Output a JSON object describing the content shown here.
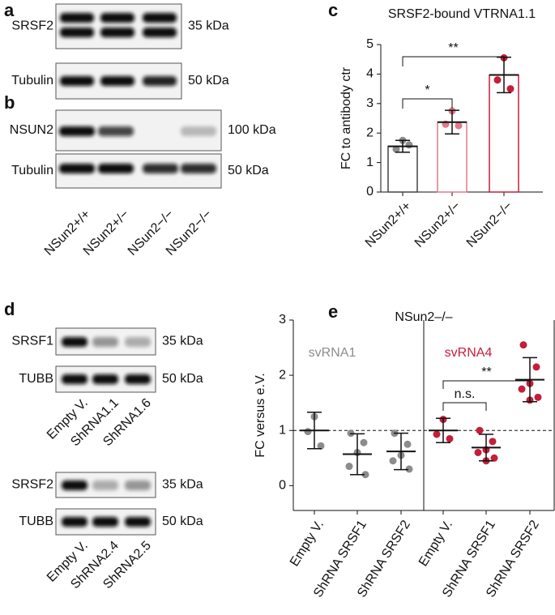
{
  "panel_labels": [
    "a",
    "b",
    "c",
    "d",
    "e"
  ],
  "blots": {
    "a": {
      "rows": [
        {
          "label": "SRSF2",
          "size": "35 kDa"
        },
        {
          "label": "Tubulin",
          "size": "50 kDa"
        }
      ]
    },
    "b": {
      "rows": [
        {
          "label": "NSUN2",
          "size": "100 kDa"
        },
        {
          "label": "Tubulin",
          "size": "50 kDa"
        }
      ],
      "lanes": [
        "NSun2+/+",
        "NSun2+/−",
        "NSun2−/−",
        "NSun2−/−"
      ]
    },
    "d1": {
      "rows": [
        {
          "label": "SRSF1",
          "size": "35 kDa"
        },
        {
          "label": "TUBB",
          "size": "50 kDa"
        }
      ],
      "lanes": [
        "Empty V.",
        "ShRNA1.1",
        "ShRNA1.6"
      ]
    },
    "d2": {
      "rows": [
        {
          "label": "SRSF2",
          "size": "35 kDa"
        },
        {
          "label": "TUBB",
          "size": "50 kDa"
        }
      ],
      "lanes": [
        "Empty V.",
        "ShRNA2.4",
        "ShRNA2.5"
      ]
    }
  },
  "chart_data": [
    {
      "type": "bar",
      "title": "SRSF2-bound VTRNA1.1",
      "y_label": "FC to antibody ctr",
      "categories": [
        "NSun2+/+",
        "NSun2+/−",
        "NSun2−/−"
      ],
      "values": [
        1.55,
        2.37,
        3.97
      ],
      "errors": [
        0.2,
        0.4,
        0.6
      ],
      "points": [
        [
          1.75,
          1.45,
          1.6
        ],
        [
          2.75,
          2.3,
          2.25
        ],
        [
          4.55,
          3.8,
          3.5
        ]
      ],
      "colors": [
        "#8c8c8c",
        "#e07a8a",
        "#c41e3a"
      ],
      "ylim": [
        0,
        5
      ],
      "yticks": [
        0,
        1,
        2,
        3,
        4,
        5
      ],
      "annotations": [
        {
          "text": "*"
        },
        {
          "text": "**"
        }
      ]
    },
    {
      "type": "dot",
      "title": "NSun2–/–",
      "y_label": "FC versus e.V.",
      "groups": [
        {
          "text": "svRNA1",
          "color": "#8c8c8c"
        },
        {
          "text": "svRNA4",
          "color": "#c41e3a"
        }
      ],
      "categories": [
        "Empty V.",
        "ShRNA SRSF1",
        "ShRNA SRSF2",
        "Empty V.",
        "ShRNA SRSF1",
        "ShRNA SRSF2"
      ],
      "values": [
        1.0,
        0.57,
        0.62,
        1.0,
        0.69,
        1.92
      ],
      "errors": [
        0.33,
        0.37,
        0.33,
        0.22,
        0.24,
        0.4
      ],
      "points": [
        [
          1.25,
          0.98,
          0.72
        ],
        [
          0.95,
          0.78,
          0.6,
          0.35,
          0.2
        ],
        [
          0.95,
          0.75,
          0.55,
          0.45,
          0.3
        ],
        [
          1.2,
          0.93,
          0.85
        ],
        [
          1.0,
          0.8,
          0.65,
          0.6,
          0.5,
          0.45
        ],
        [
          2.55,
          2.15,
          1.85,
          1.75,
          1.6,
          1.55
        ]
      ],
      "colors": [
        "#8c8c8c",
        "#8c8c8c",
        "#8c8c8c",
        "#c41e3a",
        "#c41e3a",
        "#c41e3a"
      ],
      "reference_line": 1,
      "ylim": [
        -0.45,
        3
      ],
      "yticks": [
        0,
        1,
        2,
        3
      ],
      "annotations": [
        {
          "text": "n.s."
        },
        {
          "text": "**"
        }
      ]
    }
  ]
}
